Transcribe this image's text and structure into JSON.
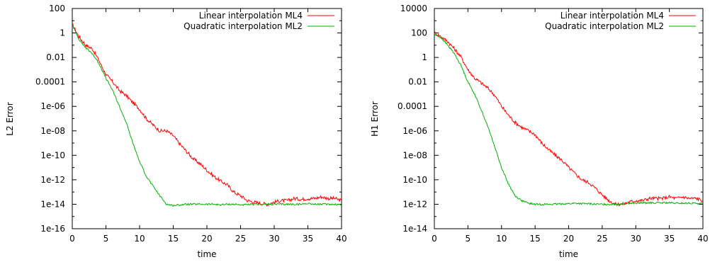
{
  "chart_data": [
    {
      "type": "line",
      "title": "",
      "xlabel": "time",
      "ylabel": "L2 Error",
      "xlim": [
        0,
        40
      ],
      "ylim": [
        1e-16,
        100
      ],
      "yscale": "log",
      "x_ticks": [
        0,
        5,
        10,
        15,
        20,
        25,
        30,
        35,
        40
      ],
      "x_tick_labels": [
        "0",
        "5",
        "10",
        "15",
        "20",
        "25",
        "30",
        "35",
        "40"
      ],
      "y_ticks": [
        1e-16,
        1e-14,
        1e-12,
        1e-10,
        1e-08,
        1e-06,
        0.0001,
        0.01,
        1,
        100
      ],
      "y_tick_labels": [
        "1e-16",
        "1e-14",
        "1e-12",
        "1e-10",
        "1e-08",
        "1e-06",
        "0.0001",
        "0.01",
        "1",
        "100"
      ],
      "grid": false,
      "legend_position": "top-right",
      "series": [
        {
          "name": "Linear interpolation ML4",
          "color": "#ff0000",
          "x": [
            0,
            1,
            2,
            3,
            4,
            5,
            6,
            7,
            8,
            9,
            10,
            11,
            12,
            13,
            14,
            15,
            16,
            17,
            18,
            19,
            20,
            21,
            22,
            23,
            24,
            25,
            26,
            27,
            28,
            29,
            30,
            31,
            32,
            33,
            34,
            35,
            36,
            37,
            38,
            39,
            40
          ],
          "y": [
            5,
            0.5,
            0.1,
            0.05,
            0.005,
            0.0004,
            0.0001,
            2e-05,
            8e-06,
            2e-06,
            6e-07,
            1e-07,
            3e-08,
            1e-08,
            1e-08,
            4e-09,
            8e-10,
            2e-10,
            5e-11,
            2e-11,
            6e-12,
            2e-12,
            8e-13,
            4e-13,
            1e-13,
            5e-14,
            2e-14,
            1.5e-14,
            1.2e-14,
            1e-14,
            1.5e-14,
            2e-14,
            2e-14,
            3e-14,
            2.5e-14,
            3e-14,
            3e-14,
            4e-14,
            3e-14,
            3e-14,
            2e-14
          ]
        },
        {
          "name": "Quadratic interpolation ML2",
          "color": "#00b000",
          "x": [
            0,
            1,
            2,
            3,
            4,
            5,
            6,
            7,
            8,
            9,
            10,
            11,
            12,
            13,
            14,
            15,
            16,
            17,
            18,
            19,
            20,
            21,
            22,
            23,
            24,
            25,
            26,
            27,
            28,
            29,
            30,
            31,
            32,
            33,
            34,
            35,
            36,
            37,
            38,
            39,
            40
          ],
          "y": [
            5,
            0.3,
            0.06,
            0.02,
            0.003,
            0.0002,
            2e-05,
            1e-06,
            5e-08,
            1e-09,
            3e-11,
            2e-12,
            3e-13,
            5e-14,
            1e-14,
            8e-15,
            9e-15,
            1e-14,
            1e-14,
            1e-14,
            1e-14,
            1e-14,
            9e-15,
            1e-14,
            1e-14,
            9e-15,
            9e-15,
            1e-14,
            1e-14,
            1e-14,
            1e-14,
            1e-14,
            1e-14,
            1e-14,
            1e-14,
            1.2e-14,
            1e-14,
            1e-14,
            1e-14,
            1e-14,
            9e-15
          ]
        }
      ]
    },
    {
      "type": "line",
      "title": "",
      "xlabel": "time",
      "ylabel": "H1 Error",
      "xlim": [
        0,
        40
      ],
      "ylim": [
        1e-14,
        10000
      ],
      "yscale": "log",
      "x_ticks": [
        0,
        5,
        10,
        15,
        20,
        25,
        30,
        35,
        40
      ],
      "x_tick_labels": [
        "0",
        "5",
        "10",
        "15",
        "20",
        "25",
        "30",
        "35",
        "40"
      ],
      "y_ticks": [
        1e-14,
        1e-12,
        1e-10,
        1e-08,
        1e-06,
        0.0001,
        0.01,
        1,
        100,
        10000
      ],
      "y_tick_labels": [
        "1e-14",
        "1e-12",
        "1e-10",
        "1e-08",
        "1e-06",
        "0.0001",
        "0.01",
        "1",
        "100",
        "10000"
      ],
      "grid": false,
      "legend_position": "top-right",
      "series": [
        {
          "name": "Linear interpolation ML4",
          "color": "#ff0000",
          "x": [
            0,
            1,
            2,
            3,
            4,
            5,
            6,
            7,
            8,
            9,
            10,
            11,
            12,
            13,
            14,
            15,
            16,
            17,
            18,
            19,
            20,
            21,
            22,
            23,
            24,
            25,
            26,
            27,
            28,
            29,
            30,
            31,
            32,
            33,
            34,
            35,
            36,
            37,
            38,
            39,
            40
          ],
          "y": [
            100,
            50,
            20,
            5,
            1,
            0.1,
            0.02,
            0.008,
            0.003,
            0.0008,
            0.0001,
            2e-05,
            5e-06,
            2e-06,
            1e-06,
            5e-07,
            1e-07,
            3e-08,
            1e-08,
            4e-09,
            1e-09,
            3e-10,
            1e-10,
            6e-11,
            2e-11,
            6e-12,
            2e-12,
            1e-12,
            1e-12,
            1.5e-12,
            2e-12,
            2e-12,
            3e-12,
            3e-12,
            3e-12,
            4e-12,
            3e-12,
            4e-12,
            3e-12,
            3e-12,
            2e-12
          ]
        },
        {
          "name": "Quadratic interpolation ML2",
          "color": "#00b000",
          "x": [
            0,
            1,
            2,
            3,
            4,
            5,
            6,
            7,
            8,
            9,
            10,
            11,
            12,
            13,
            14,
            15,
            16,
            17,
            18,
            19,
            20,
            21,
            22,
            23,
            24,
            25,
            26,
            27,
            28,
            29,
            30,
            31,
            32,
            33,
            34,
            35,
            36,
            37,
            38,
            39,
            40
          ],
          "y": [
            80,
            40,
            10,
            2,
            0.2,
            0.01,
            0.001,
            5e-05,
            2e-06,
            5e-08,
            1e-09,
            5e-11,
            5e-12,
            2e-12,
            1.2e-12,
            1e-12,
            1e-12,
            1e-12,
            1e-12,
            1.1e-12,
            1.1e-12,
            1.2e-12,
            1.1e-12,
            1.1e-12,
            1e-12,
            1e-12,
            1e-12,
            1e-12,
            1.1e-12,
            1.2e-12,
            1.2e-12,
            1.3e-12,
            1.3e-12,
            1.3e-12,
            1.3e-12,
            1.3e-12,
            1.2e-12,
            1.2e-12,
            1.2e-12,
            1.2e-12,
            1.1e-12
          ]
        }
      ]
    }
  ]
}
